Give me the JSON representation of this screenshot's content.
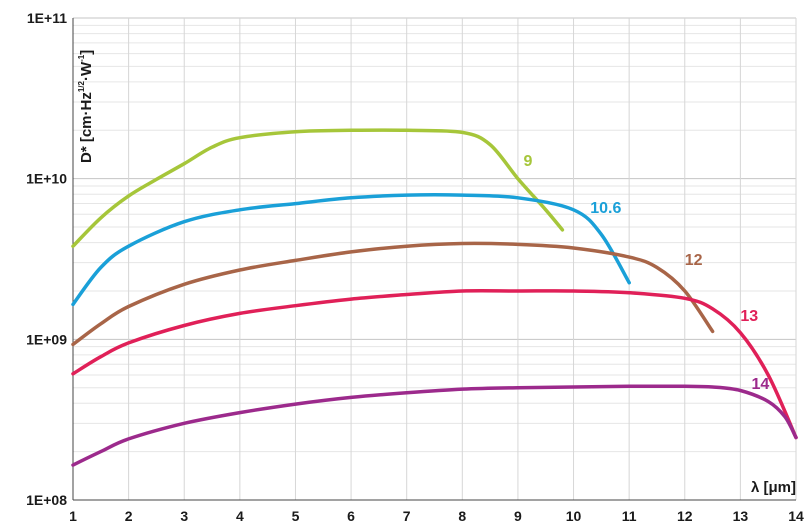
{
  "chart_data": {
    "type": "line",
    "title": "",
    "xlabel": "λ [μm]",
    "ylabel": "D* [cm·Hz",
    "ylabel_sup1": "1/2",
    "ylabel_mid": "·W",
    "ylabel_sup2": "-1",
    "ylabel_end": "]",
    "xlim": [
      1,
      14
    ],
    "ylim": [
      100000000,
      100000000000
    ],
    "yscale": "log",
    "x_ticks": [
      1,
      2,
      3,
      4,
      5,
      6,
      7,
      8,
      9,
      10,
      11,
      12,
      13,
      14
    ],
    "x_tick_labels": [
      "1",
      "2",
      "3",
      "4",
      "5",
      "6",
      "7",
      "8",
      "9",
      "10",
      "11",
      "12",
      "13",
      "14"
    ],
    "y_ticks": [
      100000000,
      1000000000,
      10000000000,
      100000000000
    ],
    "y_tick_labels": [
      "1E+08",
      "1E+09",
      "1E+10",
      "1E+11"
    ],
    "grid": true,
    "legend": "inline labels at curve ends",
    "series": [
      {
        "name": "9",
        "color": "#a6c63a",
        "x": [
          1.0,
          1.5,
          2.0,
          2.5,
          3.0,
          3.5,
          4.0,
          5.0,
          6.0,
          7.0,
          8.0,
          8.5,
          9.0,
          9.5,
          9.8
        ],
        "y": [
          3800000000.0,
          5700000000.0,
          7800000000.0,
          9900000000.0,
          12400000000.0,
          15700000000.0,
          18000000000.0,
          19600000000.0,
          20000000000.0,
          20000000000.0,
          19400000000.0,
          16300000000.0,
          10000000000.0,
          6400000000.0,
          4800000000.0
        ]
      },
      {
        "name": "10.6",
        "color": "#1aa0d8",
        "x": [
          1.0,
          1.5,
          2.0,
          3.0,
          4.0,
          5.0,
          6.0,
          7.0,
          8.0,
          9.0,
          10.0,
          10.5,
          11.0
        ],
        "y": [
          1650000000.0,
          2800000000.0,
          3800000000.0,
          5400000000.0,
          6400000000.0,
          7000000000.0,
          7600000000.0,
          7900000000.0,
          7900000000.0,
          7600000000.0,
          6400000000.0,
          4500000000.0,
          2250000000.0
        ]
      },
      {
        "name": "12",
        "color": "#a86548",
        "x": [
          1.0,
          1.5,
          2.0,
          3.0,
          4.0,
          5.0,
          6.0,
          7.0,
          8.0,
          9.0,
          10.0,
          11.0,
          11.5,
          12.0,
          12.5
        ],
        "y": [
          930000000.0,
          1250000000.0,
          1600000000.0,
          2200000000.0,
          2700000000.0,
          3100000000.0,
          3500000000.0,
          3800000000.0,
          3950000000.0,
          3900000000.0,
          3700000000.0,
          3250000000.0,
          2800000000.0,
          2000000000.0,
          1120000000.0
        ]
      },
      {
        "name": "13",
        "color": "#e02058",
        "x": [
          1.0,
          1.5,
          2.0,
          3.0,
          4.0,
          5.0,
          6.0,
          7.0,
          8.0,
          9.0,
          10.0,
          11.0,
          12.0,
          12.5,
          13.0,
          13.5,
          14.0
        ],
        "y": [
          610000000.0,
          780000000.0,
          950000000.0,
          1220000000.0,
          1450000000.0,
          1620000000.0,
          1780000000.0,
          1900000000.0,
          2000000000.0,
          2000000000.0,
          2000000000.0,
          1950000000.0,
          1800000000.0,
          1550000000.0,
          1100000000.0,
          600000000.0,
          245000000.0
        ]
      },
      {
        "name": "14",
        "color": "#9c2a8c",
        "x": [
          1.0,
          1.5,
          2.0,
          3.0,
          4.0,
          5.0,
          6.0,
          7.0,
          8.0,
          9.0,
          10.0,
          11.0,
          12.0,
          12.5,
          13.0,
          13.5,
          13.8,
          14.0
        ],
        "y": [
          165000000.0,
          200000000.0,
          240000000.0,
          300000000.0,
          350000000.0,
          395000000.0,
          435000000.0,
          465000000.0,
          490000000.0,
          500000000.0,
          505000000.0,
          510000000.0,
          510000000.0,
          505000000.0,
          480000000.0,
          410000000.0,
          330000000.0,
          245000000.0
        ]
      }
    ],
    "series_label_positions": [
      {
        "x": 9.1,
        "y": 12000000000.0
      },
      {
        "x": 10.3,
        "y": 6100000000.0
      },
      {
        "x": 12.0,
        "y": 2900000000.0
      },
      {
        "x": 13.0,
        "y": 1300000000.0
      },
      {
        "x": 13.2,
        "y": 490000000.0
      }
    ]
  }
}
